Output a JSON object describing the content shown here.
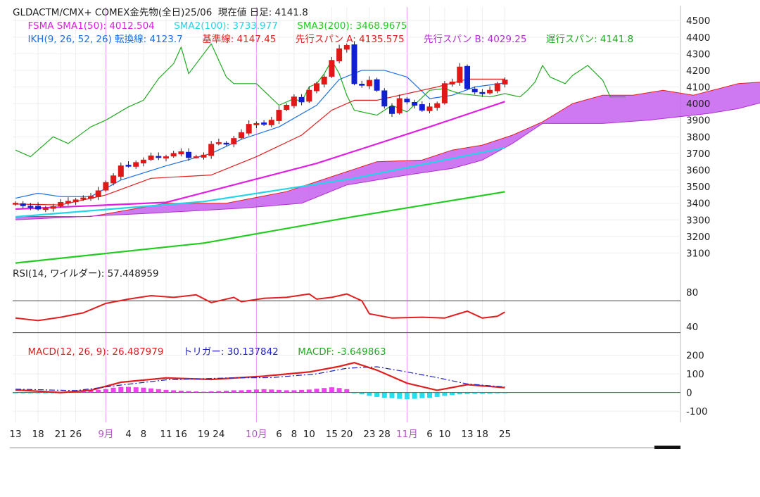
{
  "header": {
    "line1": "GLDACTM/CMX+ COMEX金先物(全日)25/06  現在値 日足: 4141.8",
    "fsma": [
      {
        "text": "FSMA SMA1(50): 4012.504",
        "color": "#e020e0"
      },
      {
        "text": "SMA2(100): 3733.977",
        "color": "#22d6e8"
      },
      {
        "text": "SMA3(200): 3468.9675",
        "color": "#22cc22"
      }
    ],
    "ikh": [
      {
        "text": "IKH(9, 26, 52, 26) 転換線: 4123.7",
        "color": "#1e6fe0"
      },
      {
        "text": "基準線: 4147.45",
        "color": "#e02020"
      },
      {
        "text": "先行スパン A: 4135.575",
        "color": "#e02020"
      },
      {
        "text": "先行スパン B: 4029.25",
        "color": "#b030d0"
      },
      {
        "text": "遅行スパン: 4141.8",
        "color": "#22aa22"
      }
    ],
    "rsi_label": "RSI(14, ワイルダー): 57.448959",
    "macd": [
      {
        "text": "MACD(12, 26, 9): 26.487979",
        "color": "#e02020"
      },
      {
        "text": "トリガー: 30.137842",
        "color": "#2020c0"
      },
      {
        "text": "MACDF: -3.649863",
        "color": "#22aa22"
      }
    ]
  },
  "chart_data": [
    {
      "type": "candlestick",
      "panel": "price",
      "ylim": [
        3030,
        4560
      ],
      "y_ticks": [
        3100,
        3200,
        3300,
        3400,
        3500,
        3600,
        3700,
        3800,
        3900,
        4000,
        4100,
        4200,
        4300,
        4400,
        4500
      ],
      "x_labels": [
        {
          "i": 0,
          "label": "13",
          "month": false
        },
        {
          "i": 3,
          "label": "18",
          "month": false
        },
        {
          "i": 6,
          "label": "21",
          "month": false
        },
        {
          "i": 8,
          "label": "26",
          "month": false
        },
        {
          "i": 12,
          "label": "9月",
          "month": true
        },
        {
          "i": 15,
          "label": "4",
          "month": false
        },
        {
          "i": 17,
          "label": "8",
          "month": false
        },
        {
          "i": 20,
          "label": "11",
          "month": false
        },
        {
          "i": 22,
          "label": "16",
          "month": false
        },
        {
          "i": 25,
          "label": "19",
          "month": false
        },
        {
          "i": 27,
          "label": "24",
          "month": false
        },
        {
          "i": 32,
          "label": "10月",
          "month": true
        },
        {
          "i": 35,
          "label": "6",
          "month": false
        },
        {
          "i": 37,
          "label": "8",
          "month": false
        },
        {
          "i": 39,
          "label": "10",
          "month": false
        },
        {
          "i": 42,
          "label": "15",
          "month": false
        },
        {
          "i": 44,
          "label": "20",
          "month": false
        },
        {
          "i": 47,
          "label": "23",
          "month": false
        },
        {
          "i": 49,
          "label": "28",
          "month": false
        },
        {
          "i": 52,
          "label": "11月",
          "month": true
        },
        {
          "i": 55,
          "label": "6",
          "month": false
        },
        {
          "i": 57,
          "label": "10",
          "month": false
        },
        {
          "i": 60,
          "label": "13",
          "month": false
        },
        {
          "i": 62,
          "label": "18",
          "month": false
        },
        {
          "i": 65,
          "label": "25",
          "month": false
        }
      ],
      "month_lines": [
        12,
        32,
        52
      ],
      "closes": [
        3400,
        3385,
        3378,
        3365,
        3372,
        3380,
        3405,
        3412,
        3420,
        3432,
        3442,
        3475,
        3525,
        3565,
        3625,
        3625,
        3645,
        3660,
        3685,
        3675,
        3680,
        3700,
        3710,
        3675,
        3680,
        3690,
        3755,
        3765,
        3760,
        3790,
        3825,
        3875,
        3880,
        3875,
        3900,
        3960,
        3990,
        4040,
        4010,
        4080,
        4120,
        4160,
        4260,
        4330,
        4350,
        4120,
        4110,
        4140,
        4080,
        3985,
        3940,
        4030,
        4010,
        3990,
        3960,
        3980,
        4000,
        4120,
        4130,
        4220,
        4090,
        4070,
        4060,
        4080,
        4120,
        4141.8
      ],
      "series": [
        {
          "name": "SMA1(50)",
          "color": "#e020e0",
          "points": [
            [
              0,
              3365
            ],
            [
              20,
              3405
            ],
            [
              40,
              3640
            ],
            [
              55,
              3860
            ],
            [
              65,
              4012
            ]
          ]
        },
        {
          "name": "SMA2(100)",
          "color": "#22d6e8",
          "points": [
            [
              0,
              3318
            ],
            [
              25,
              3410
            ],
            [
              45,
              3550
            ],
            [
              65,
              3734
            ]
          ]
        },
        {
          "name": "SMA3(200)",
          "color": "#22cc22",
          "points": [
            [
              0,
              3040
            ],
            [
              25,
              3160
            ],
            [
              45,
              3320
            ],
            [
              65,
              3469
            ]
          ]
        },
        {
          "name": "転換線",
          "color": "#1e6fe0",
          "points": [
            [
              0,
              3430
            ],
            [
              3,
              3460
            ],
            [
              6,
              3440
            ],
            [
              10,
              3440
            ],
            [
              14,
              3540
            ],
            [
              20,
              3625
            ],
            [
              26,
              3700
            ],
            [
              30,
              3785
            ],
            [
              35,
              3860
            ],
            [
              40,
              3990
            ],
            [
              43,
              4145
            ],
            [
              46,
              4200
            ],
            [
              49,
              4200
            ],
            [
              52,
              4160
            ],
            [
              55,
              4030
            ],
            [
              58,
              4050
            ],
            [
              61,
              4100
            ],
            [
              65,
              4124
            ]
          ]
        },
        {
          "name": "基準線",
          "color": "#e02020",
          "points": [
            [
              0,
              3395
            ],
            [
              6,
              3390
            ],
            [
              12,
              3450
            ],
            [
              18,
              3550
            ],
            [
              26,
              3570
            ],
            [
              32,
              3680
            ],
            [
              38,
              3810
            ],
            [
              42,
              3960
            ],
            [
              45,
              4020
            ],
            [
              48,
              4020
            ],
            [
              52,
              4060
            ],
            [
              56,
              4100
            ],
            [
              60,
              4147
            ],
            [
              65,
              4147
            ]
          ]
        },
        {
          "name": "遅行スパン",
          "color": "#22aa22",
          "points": [
            [
              0,
              3720
            ],
            [
              2,
              3680
            ],
            [
              5,
              3800
            ],
            [
              7,
              3760
            ],
            [
              10,
              3860
            ],
            [
              12,
              3900
            ],
            [
              15,
              3980
            ],
            [
              17,
              4020
            ],
            [
              19,
              4150
            ],
            [
              21,
              4240
            ],
            [
              22,
              4340
            ],
            [
              23,
              4180
            ],
            [
              25,
              4300
            ],
            [
              26,
              4360
            ],
            [
              28,
              4160
            ],
            [
              29,
              4120
            ],
            [
              32,
              4120
            ],
            [
              35,
              3990
            ],
            [
              37,
              4030
            ],
            [
              38,
              4010
            ],
            [
              39,
              4100
            ],
            [
              40,
              4120
            ],
            [
              41,
              4180
            ],
            [
              42,
              4260
            ],
            [
              43,
              4180
            ],
            [
              44,
              4050
            ],
            [
              45,
              3960
            ],
            [
              48,
              3930
            ],
            [
              50,
              3990
            ],
            [
              52,
              3950
            ],
            [
              55,
              4080
            ],
            [
              57,
              4090
            ],
            [
              59,
              4060
            ],
            [
              61,
              4050
            ],
            [
              63,
              4040
            ],
            [
              65,
              4060
            ],
            [
              67,
              4040
            ],
            [
              68,
              4080
            ],
            [
              69,
              4130
            ],
            [
              70,
              4230
            ],
            [
              71,
              4160
            ],
            [
              72,
              4140
            ],
            [
              73,
              4120
            ],
            [
              74,
              4170
            ],
            [
              76,
              4230
            ],
            [
              78,
              4140
            ],
            [
              79,
              4040
            ],
            [
              81,
              4040
            ]
          ]
        }
      ],
      "cloud": {
        "fill_color": "#c560f0",
        "edge_colors": [
          "#e02020",
          "#b030d0"
        ],
        "span_a": [
          [
            0,
            3320
          ],
          [
            10,
            3320
          ],
          [
            20,
            3400
          ],
          [
            28,
            3400
          ],
          [
            36,
            3470
          ],
          [
            42,
            3560
          ],
          [
            48,
            3650
          ],
          [
            54,
            3660
          ],
          [
            58,
            3720
          ],
          [
            62,
            3750
          ],
          [
            66,
            3810
          ],
          [
            70,
            3890
          ],
          [
            74,
            4000
          ],
          [
            78,
            4050
          ],
          [
            82,
            4050
          ],
          [
            86,
            4080
          ],
          [
            90,
            4050
          ],
          [
            96,
            4120
          ],
          [
            101,
            4135
          ]
        ],
        "span_b": [
          [
            0,
            3300
          ],
          [
            18,
            3340
          ],
          [
            30,
            3370
          ],
          [
            38,
            3400
          ],
          [
            44,
            3510
          ],
          [
            52,
            3570
          ],
          [
            58,
            3610
          ],
          [
            62,
            3660
          ],
          [
            66,
            3760
          ],
          [
            70,
            3880
          ],
          [
            78,
            3880
          ],
          [
            84,
            3900
          ],
          [
            92,
            3940
          ],
          [
            96,
            3970
          ],
          [
            101,
            4029
          ]
        ]
      }
    },
    {
      "type": "line",
      "panel": "rsi",
      "ylim": [
        22,
        112
      ],
      "y_ticks": [
        40,
        80
      ],
      "ref_lines": [
        33,
        70
      ],
      "series": [
        {
          "name": "RSI(14)",
          "color": "#e02020",
          "points": [
            [
              0,
              50
            ],
            [
              3,
              47
            ],
            [
              6,
              51
            ],
            [
              9,
              56
            ],
            [
              12,
              67
            ],
            [
              15,
              72
            ],
            [
              18,
              76
            ],
            [
              21,
              74
            ],
            [
              24,
              77
            ],
            [
              26,
              68
            ],
            [
              29,
              74
            ],
            [
              30,
              69
            ],
            [
              33,
              73
            ],
            [
              36,
              74
            ],
            [
              39,
              78
            ],
            [
              40,
              72
            ],
            [
              42,
              74
            ],
            [
              44,
              78
            ],
            [
              46,
              70
            ],
            [
              47,
              55
            ],
            [
              50,
              50
            ],
            [
              54,
              51
            ],
            [
              57,
              50
            ],
            [
              60,
              58
            ],
            [
              62,
              50
            ],
            [
              64,
              52
            ],
            [
              65,
              57
            ]
          ]
        }
      ]
    },
    {
      "type": "bar+line",
      "panel": "macd",
      "ylim": [
        -160,
        270
      ],
      "y_ticks": [
        -100,
        0,
        100,
        200
      ],
      "macdf": [
        -4,
        -4,
        -3,
        -2,
        -2,
        -2,
        0,
        2,
        4,
        8,
        10,
        14,
        18,
        26,
        30,
        30,
        28,
        26,
        22,
        18,
        14,
        12,
        10,
        8,
        6,
        4,
        6,
        8,
        10,
        12,
        12,
        14,
        16,
        18,
        16,
        14,
        12,
        12,
        14,
        16,
        20,
        24,
        28,
        24,
        18,
        -4,
        -10,
        -18,
        -24,
        -28,
        -30,
        -34,
        -36,
        -34,
        -30,
        -28,
        -24,
        -18,
        -14,
        -10,
        -8,
        -6,
        -6,
        -5,
        -4,
        -3.6
      ],
      "series": [
        {
          "name": "MACD",
          "color": "#e02020",
          "points": [
            [
              0,
              14
            ],
            [
              6,
              0
            ],
            [
              10,
              12
            ],
            [
              14,
              55
            ],
            [
              20,
              78
            ],
            [
              26,
              70
            ],
            [
              33,
              88
            ],
            [
              39,
              110
            ],
            [
              43,
              140
            ],
            [
              45,
              160
            ],
            [
              48,
              120
            ],
            [
              52,
              50
            ],
            [
              56,
              12
            ],
            [
              60,
              42
            ],
            [
              65,
              26
            ]
          ]
        },
        {
          "name": "トリガー",
          "color": "#2020c0",
          "points": [
            [
              0,
              18
            ],
            [
              8,
              10
            ],
            [
              14,
              40
            ],
            [
              20,
              68
            ],
            [
              28,
              78
            ],
            [
              34,
              80
            ],
            [
              40,
              100
            ],
            [
              44,
              130
            ],
            [
              48,
              138
            ],
            [
              52,
              110
            ],
            [
              56,
              80
            ],
            [
              60,
              46
            ],
            [
              65,
              30
            ]
          ]
        }
      ]
    }
  ]
}
